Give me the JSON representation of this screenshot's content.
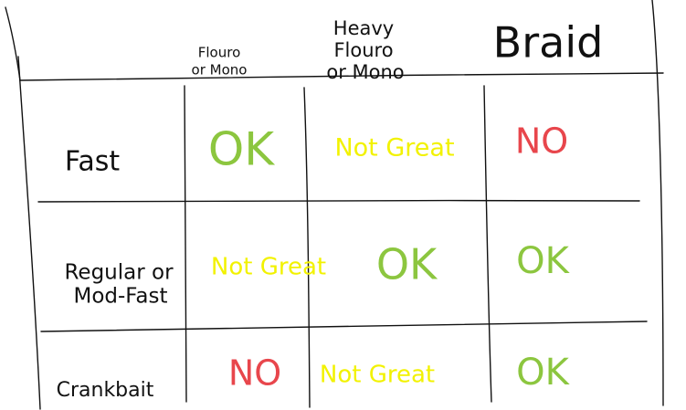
{
  "table": {
    "columns": [
      [
        "Flouro",
        "or Mono"
      ],
      [
        "Heavy",
        "Flouro",
        "or Mono"
      ],
      [
        "Braid"
      ]
    ],
    "rows": [
      {
        "label": [
          "Fast"
        ],
        "cells": [
          "OK",
          "Not Great",
          "NO"
        ]
      },
      {
        "label": [
          "Regular or",
          "Mod-Fast"
        ],
        "cells": [
          "Not Great",
          "OK",
          "OK"
        ]
      },
      {
        "label": [
          "Crankbait"
        ],
        "cells": [
          "NO",
          "Not Great",
          "OK"
        ]
      }
    ]
  }
}
